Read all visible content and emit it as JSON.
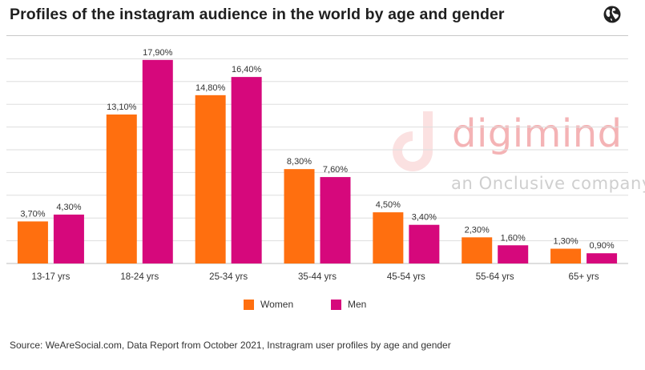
{
  "header": {
    "title": "Profiles of the instagram audience in the world by age and gender",
    "icon": "globe-icon"
  },
  "watermark": {
    "brand": "digimind",
    "tagline": "an Onclusive company",
    "color": "#f4b3b5"
  },
  "chart_data": {
    "type": "bar",
    "title": "Profiles of the instagram audience in the world by age and gender",
    "xlabel": "",
    "ylabel": "",
    "categories": [
      "13-17 yrs",
      "18-24 yrs",
      "25-34 yrs",
      "35-44 yrs",
      "45-54 yrs",
      "55-64 yrs",
      "65+ yrs"
    ],
    "series": [
      {
        "name": "Women",
        "color": "#ff6f0f",
        "values": [
          3.7,
          13.1,
          14.8,
          8.3,
          4.5,
          2.3,
          1.3
        ],
        "labels": [
          "3,70%",
          "13,10%",
          "14,80%",
          "8,30%",
          "4,50%",
          "2,30%",
          "1,30%"
        ]
      },
      {
        "name": "Men",
        "color": "#d6087c",
        "values": [
          4.3,
          17.9,
          16.4,
          7.6,
          3.4,
          1.6,
          0.9
        ],
        "labels": [
          "4,30%",
          "17,90%",
          "16,40%",
          "7,60%",
          "3,40%",
          "1,60%",
          "0,90%"
        ]
      }
    ],
    "ylim": [
      0,
      20
    ],
    "grid": true,
    "legend": "bottom-center"
  },
  "legend": {
    "women_label": "Women",
    "men_label": "Men"
  },
  "footer": {
    "source": "Source: WeAreSocial.com, Data Report from October 2021, Instragram user profiles by age and gender"
  }
}
